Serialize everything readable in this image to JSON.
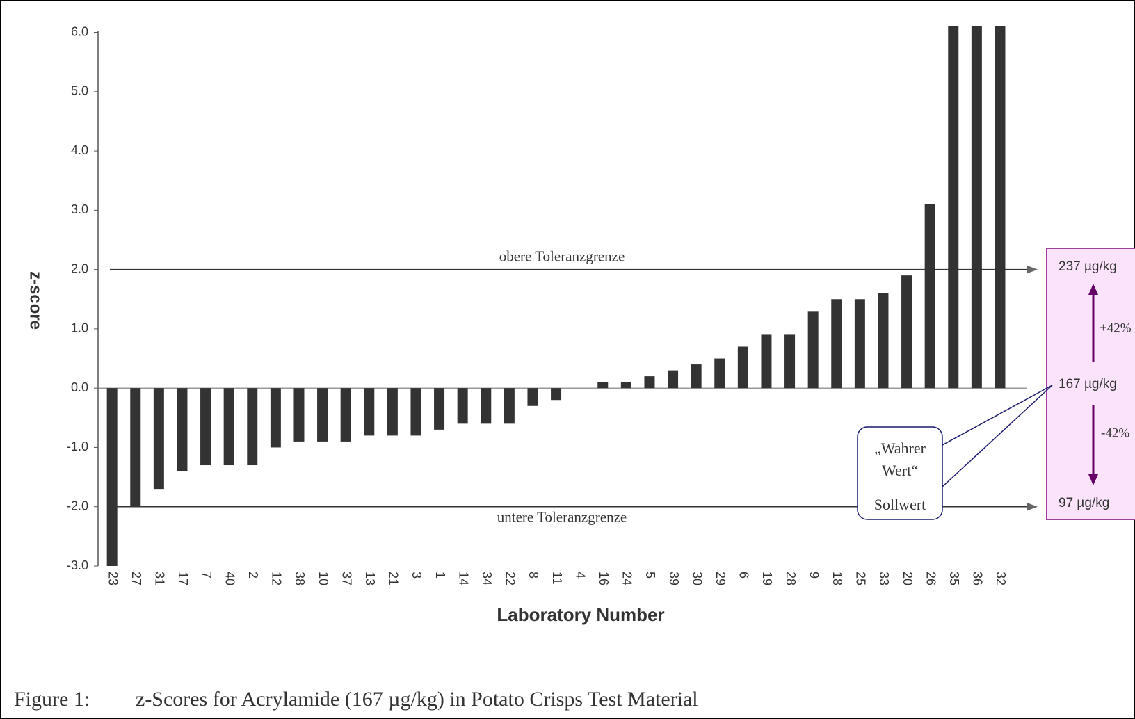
{
  "chart_data": {
    "type": "bar",
    "y_label": "z-score",
    "x_label": "Laboratory Number",
    "caption_number": "Figure 1:",
    "caption": "z-Scores for Acrylamide (167 µg/kg) in Potato Crisps Test Material",
    "categories": [
      "23",
      "27",
      "31",
      "17",
      "7",
      "40",
      "2",
      "12",
      "38",
      "10",
      "37",
      "13",
      "21",
      "3",
      "1",
      "14",
      "34",
      "22",
      "8",
      "11",
      "4",
      "16",
      "24",
      "5",
      "39",
      "30",
      "29",
      "6",
      "19",
      "28",
      "9",
      "18",
      "25",
      "33",
      "20",
      "26",
      "35",
      "36",
      "32"
    ],
    "values": [
      -3.0,
      -2.0,
      -1.7,
      -1.4,
      -1.3,
      -1.3,
      -1.3,
      -1.0,
      -0.9,
      -0.9,
      -0.9,
      -0.8,
      -0.8,
      -0.8,
      -0.7,
      -0.6,
      -0.6,
      -0.6,
      -0.3,
      -0.2,
      0,
      0.1,
      0.1,
      0.2,
      0.3,
      0.4,
      0.5,
      0.7,
      0.9,
      0.9,
      1.3,
      1.5,
      1.5,
      1.6,
      1.9,
      3.1,
      6.1,
      6.1,
      6.1
    ],
    "color": "#333333",
    "ylim": [
      -3.0,
      6.1
    ],
    "yticks": [
      {
        "value": -3,
        "label": "-3.0"
      },
      {
        "value": -2,
        "label": "-2.0"
      },
      {
        "value": -1,
        "label": "-1.0"
      },
      {
        "value": 0,
        "label": "0.0"
      },
      {
        "value": 1,
        "label": "1.0"
      },
      {
        "value": 2,
        "label": "2.0"
      },
      {
        "value": 3,
        "label": "3.0"
      },
      {
        "value": 4,
        "label": "4.0"
      },
      {
        "value": 5,
        "label": "5.0"
      },
      {
        "value": 6,
        "label": "6.0"
      }
    ],
    "grid": false,
    "hlines": [
      {
        "value": 2,
        "label": "obere Toleranzgrenze"
      },
      {
        "value": -2,
        "label": "untere Toleranzgrenze"
      }
    ],
    "limits_box": {
      "upper": "237 µg/kg",
      "upper_pct": "+42%",
      "center": "167 µg/kg",
      "lower_pct": "-42%",
      "lower": "97 µg/kg"
    },
    "callout": {
      "lines": [
        "„Wahrer",
        "Wert“"
      ],
      "label": "Sollwert"
    }
  }
}
